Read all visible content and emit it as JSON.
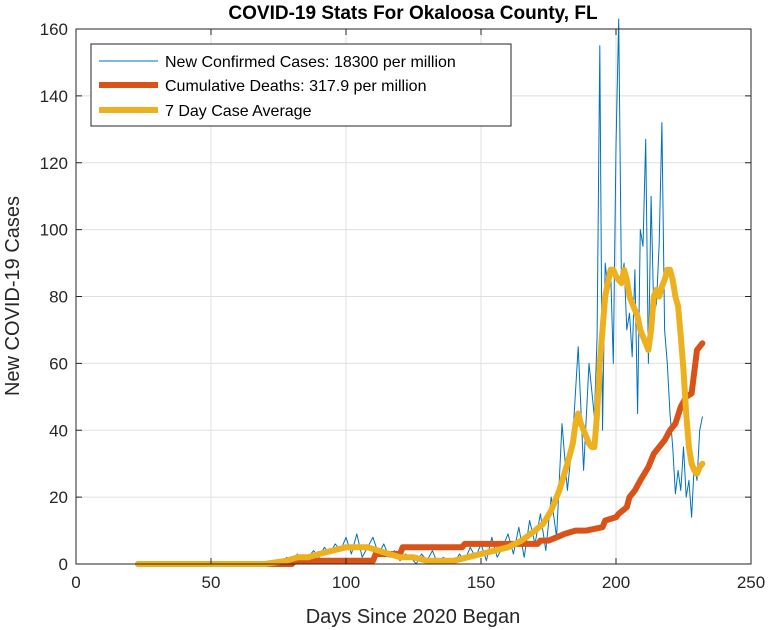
{
  "chart_data": {
    "type": "line",
    "title": "COVID-19 Stats For Okaloosa County, FL",
    "xlabel": "Days Since 2020 Began",
    "ylabel": "New COVID-19 Cases",
    "xlim": [
      0,
      250
    ],
    "ylim": [
      0,
      160
    ],
    "xticks": [
      0,
      50,
      100,
      150,
      200,
      250
    ],
    "yticks": [
      0,
      20,
      40,
      60,
      80,
      100,
      120,
      140,
      160
    ],
    "grid": true,
    "legend_position": "top-left",
    "series": [
      {
        "name": "New Confirmed Cases: 18300 per million",
        "color": "#0072BD",
        "style": "thin",
        "x": [
          23,
          30,
          40,
          50,
          60,
          70,
          76,
          78,
          80,
          82,
          84,
          86,
          88,
          90,
          92,
          94,
          96,
          98,
          100,
          102,
          104,
          106,
          108,
          110,
          112,
          114,
          116,
          118,
          120,
          122,
          124,
          126,
          128,
          130,
          132,
          134,
          136,
          138,
          140,
          142,
          144,
          146,
          148,
          150,
          152,
          154,
          156,
          158,
          160,
          162,
          164,
          166,
          168,
          170,
          172,
          174,
          176,
          178,
          180,
          182,
          184,
          186,
          188,
          190,
          192,
          193,
          194,
          195,
          196,
          197,
          198,
          199,
          200,
          201,
          202,
          203,
          204,
          205,
          206,
          207,
          208,
          209,
          210,
          211,
          212,
          213,
          214,
          215,
          216,
          217,
          218,
          219,
          220,
          221,
          222,
          223,
          224,
          225,
          226,
          227,
          228,
          229,
          230,
          231,
          232
        ],
        "y": [
          0,
          0,
          0,
          0,
          0,
          0,
          0,
          2,
          1,
          3,
          0,
          2,
          4,
          2,
          5,
          3,
          6,
          4,
          8,
          3,
          9,
          2,
          5,
          8,
          3,
          6,
          2,
          4,
          1,
          3,
          2,
          0,
          3,
          1,
          4,
          0,
          2,
          1,
          0,
          3,
          1,
          5,
          2,
          6,
          1,
          8,
          2,
          5,
          9,
          3,
          11,
          2,
          13,
          6,
          15,
          4,
          20,
          8,
          42,
          22,
          38,
          65,
          28,
          60,
          44,
          68,
          155,
          40,
          90,
          82,
          88,
          60,
          125,
          163,
          85,
          90,
          70,
          75,
          62,
          88,
          45,
          100,
          95,
          127,
          60,
          110,
          75,
          78,
          96,
          132,
          70,
          60,
          45,
          35,
          21,
          28,
          22,
          35,
          20,
          25,
          14,
          30,
          25,
          40,
          44
        ]
      },
      {
        "name": "Cumulative Deaths: 317.9 per million",
        "color": "#D95319",
        "style": "thick",
        "x": [
          23,
          80,
          81,
          110,
          111,
          120,
          121,
          143,
          144,
          171,
          172,
          175,
          178,
          181,
          185,
          188,
          189,
          195,
          196,
          200,
          201,
          204,
          205,
          207,
          209,
          212,
          214,
          216,
          218,
          220,
          222,
          224,
          226,
          228,
          230,
          232
        ],
        "y": [
          0,
          0,
          1,
          1,
          3,
          3,
          5,
          5,
          6,
          6,
          7,
          7,
          8,
          9,
          10,
          10,
          10,
          11,
          13,
          14,
          15,
          17,
          20,
          22,
          25,
          29,
          33,
          35,
          37,
          40,
          42,
          47,
          50,
          51,
          64,
          66
        ]
      },
      {
        "name": "7 Day Case Average",
        "color": "#EDB120",
        "style": "thick",
        "x": [
          23,
          40,
          60,
          70,
          78,
          82,
          86,
          90,
          95,
          100,
          105,
          108,
          112,
          116,
          120,
          125,
          130,
          135,
          140,
          145,
          150,
          155,
          160,
          165,
          170,
          173,
          176,
          179,
          182,
          184,
          185,
          186,
          187,
          188,
          189,
          190,
          191,
          192,
          193,
          194,
          195,
          196,
          197,
          198,
          199,
          200,
          201,
          202,
          203,
          204,
          205,
          206,
          207,
          208,
          209,
          210,
          211,
          212,
          213,
          214,
          215,
          216,
          217,
          218,
          219,
          220,
          221,
          222,
          223,
          224,
          225,
          226,
          227,
          228,
          229,
          230,
          231,
          232
        ],
        "y": [
          0,
          0,
          0,
          0,
          1,
          2,
          2,
          3,
          4,
          5,
          5,
          5,
          4,
          3,
          2,
          2,
          1,
          1,
          1,
          2,
          3,
          4,
          5,
          7,
          10,
          12,
          16,
          22,
          30,
          36,
          42,
          45,
          42,
          40,
          38,
          36,
          35,
          35,
          45,
          60,
          70,
          80,
          84,
          88,
          88,
          86,
          85,
          84,
          88,
          85,
          80,
          78,
          76,
          74,
          70,
          68,
          66,
          64,
          70,
          80,
          82,
          80,
          83,
          85,
          88,
          88,
          85,
          80,
          77,
          68,
          58,
          45,
          35,
          30,
          28,
          27,
          29,
          30
        ]
      }
    ]
  }
}
